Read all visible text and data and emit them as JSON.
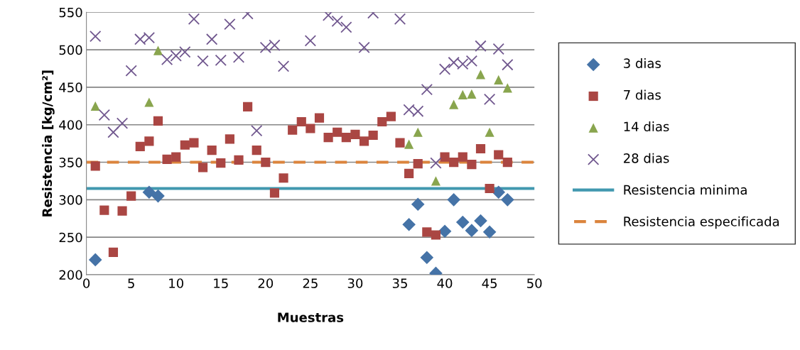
{
  "chart_data": {
    "type": "scatter",
    "xlabel": "Muestras",
    "ylabel": "Resistencia [kg/cm²]",
    "xlim": [
      0,
      50
    ],
    "xticks": [
      0,
      5,
      10,
      15,
      20,
      25,
      30,
      35,
      40,
      45,
      50
    ],
    "ylim": [
      200,
      550
    ],
    "yticks": [
      200,
      250,
      300,
      350,
      400,
      450,
      500,
      550
    ],
    "grid": "y",
    "legend": "right",
    "series": [
      {
        "name": "3 dias",
        "color": "#4573a7",
        "marker": "diamond",
        "x": [
          1,
          7,
          8,
          36,
          37,
          38,
          39,
          40,
          41,
          42,
          43,
          44,
          45,
          46,
          47
        ],
        "values": [
          220,
          310,
          305,
          267,
          294,
          223,
          202,
          258,
          300,
          270,
          259,
          272,
          257,
          310,
          300
        ]
      },
      {
        "name": "7 dias",
        "color": "#aa4643",
        "marker": "square",
        "x": [
          1,
          2,
          3,
          4,
          5,
          6,
          7,
          8,
          9,
          10,
          11,
          12,
          13,
          14,
          15,
          16,
          17,
          18,
          19,
          20,
          21,
          22,
          23,
          24,
          25,
          26,
          27,
          28,
          29,
          30,
          31,
          32,
          33,
          34,
          35,
          36,
          37,
          38,
          39,
          40,
          41,
          42,
          43,
          44,
          45,
          46,
          47
        ],
        "values": [
          345,
          286,
          230,
          285,
          305,
          371,
          378,
          405,
          354,
          357,
          373,
          376,
          343,
          366,
          349,
          381,
          353,
          424,
          366,
          350,
          309,
          329,
          393,
          404,
          395,
          409,
          383,
          390,
          383,
          387,
          378,
          386,
          404,
          411,
          376,
          335,
          348,
          257,
          253,
          357,
          350,
          357,
          347,
          368,
          315,
          360,
          350
        ]
      },
      {
        "name": "14 dias",
        "color": "#89a54e",
        "marker": "triangle",
        "x": [
          1,
          7,
          8,
          36,
          37,
          39,
          41,
          42,
          43,
          44,
          45,
          46,
          47
        ],
        "values": [
          425,
          430,
          499,
          374,
          390,
          325,
          427,
          440,
          441,
          467,
          390,
          460,
          449
        ]
      },
      {
        "name": "28 dias",
        "color": "#71588f",
        "marker": "cross",
        "x": [
          1,
          2,
          3,
          4,
          5,
          6,
          7,
          9,
          10,
          11,
          12,
          13,
          14,
          15,
          16,
          17,
          18,
          19,
          20,
          21,
          22,
          25,
          27,
          28,
          29,
          31,
          32,
          35,
          36,
          37,
          38,
          39,
          40,
          41,
          42,
          43,
          44,
          45,
          46,
          47
        ],
        "values": [
          518,
          413,
          390,
          402,
          472,
          514,
          516,
          487,
          492,
          497,
          541,
          485,
          514,
          486,
          534,
          490,
          548,
          392,
          503,
          506,
          478,
          512,
          546,
          538,
          530,
          503,
          549,
          541,
          420,
          418,
          447,
          349,
          474,
          483,
          481,
          485,
          505,
          434,
          501,
          480
        ]
      },
      {
        "name": "Resistencia minima",
        "type": "line",
        "color": "#4198af",
        "line_style": "solid",
        "x": [
          0,
          50
        ],
        "values": [
          315,
          315
        ]
      },
      {
        "name": "Resistencia especificada",
        "type": "line",
        "color": "#db843d",
        "line_style": "dashed",
        "x": [
          0,
          50
        ],
        "values": [
          350,
          350
        ]
      }
    ]
  }
}
